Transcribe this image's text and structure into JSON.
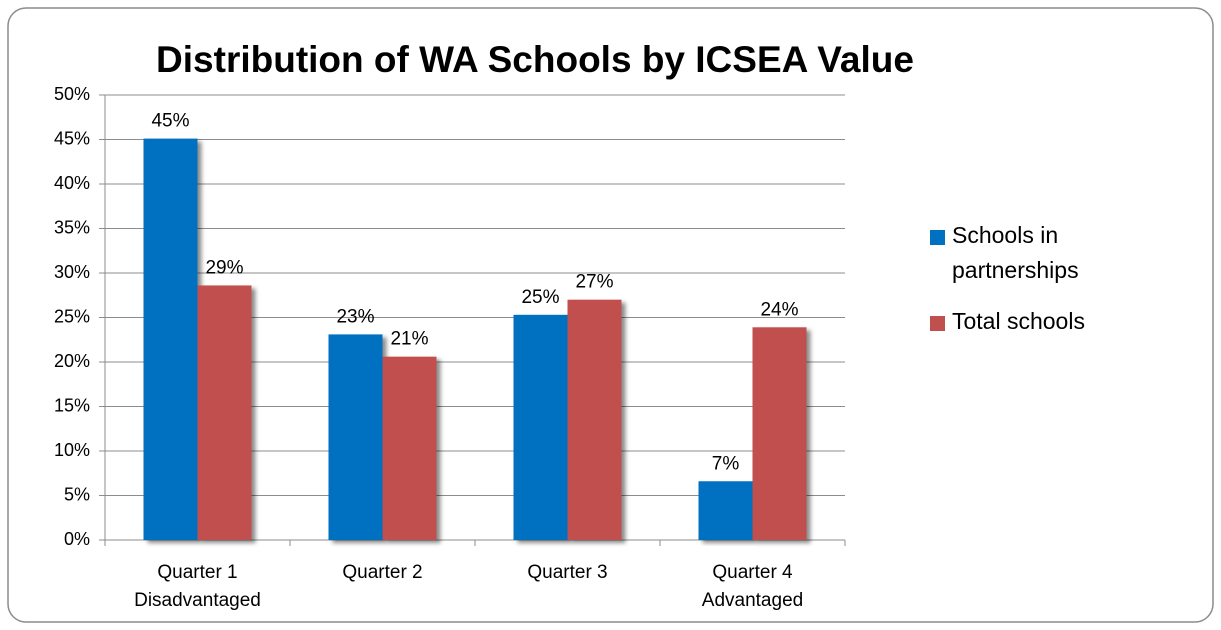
{
  "chart_data": {
    "type": "bar",
    "title": "Distribution of WA Schools by ICSEA Value",
    "categories": [
      [
        "Quarter 1",
        "Disadvantaged"
      ],
      [
        "Quarter 2"
      ],
      [
        "Quarter 3"
      ],
      [
        "Quarter 4",
        "Advantaged"
      ]
    ],
    "series": [
      {
        "name": "Schools in partnerships",
        "color": "#0070c0",
        "values": [
          45.1,
          23.1,
          25.3,
          6.6
        ],
        "value_labels": [
          "45%",
          "23%",
          "25%",
          "7%"
        ]
      },
      {
        "name": "Total schools",
        "color": "#c0504d",
        "values": [
          28.6,
          20.6,
          27.0,
          23.9
        ],
        "value_labels": [
          "29%",
          "21%",
          "27%",
          "24%"
        ]
      }
    ],
    "ylim": [
      0,
      50
    ],
    "yticks": [
      {
        "value": 0,
        "label": "0%"
      },
      {
        "value": 5,
        "label": "5%"
      },
      {
        "value": 10,
        "label": "10%"
      },
      {
        "value": 15,
        "label": "15%"
      },
      {
        "value": 20,
        "label": "20%"
      },
      {
        "value": 25,
        "label": "25%"
      },
      {
        "value": 30,
        "label": "30%"
      },
      {
        "value": 35,
        "label": "35%"
      },
      {
        "value": 40,
        "label": "40%"
      },
      {
        "value": 45,
        "label": "45%"
      },
      {
        "value": 50,
        "label": "50%"
      }
    ],
    "grid": true,
    "legend": "right"
  }
}
